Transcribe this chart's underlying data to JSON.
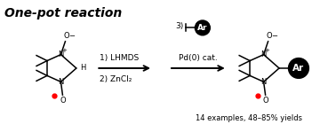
{
  "title": "One-pot reaction",
  "background_color": "#ffffff",
  "black_color": "#000000",
  "white_color": "#ffffff",
  "red_dot_color": "#ff0000",
  "ar_text": "Ar",
  "reagents1_text": "1) LHMDS",
  "reagents2_text": "2) ZnCl₂",
  "pd_text": "Pd(0) cat.",
  "step3_text": "3)",
  "yield_text": "14 examples, 48–85% yields"
}
